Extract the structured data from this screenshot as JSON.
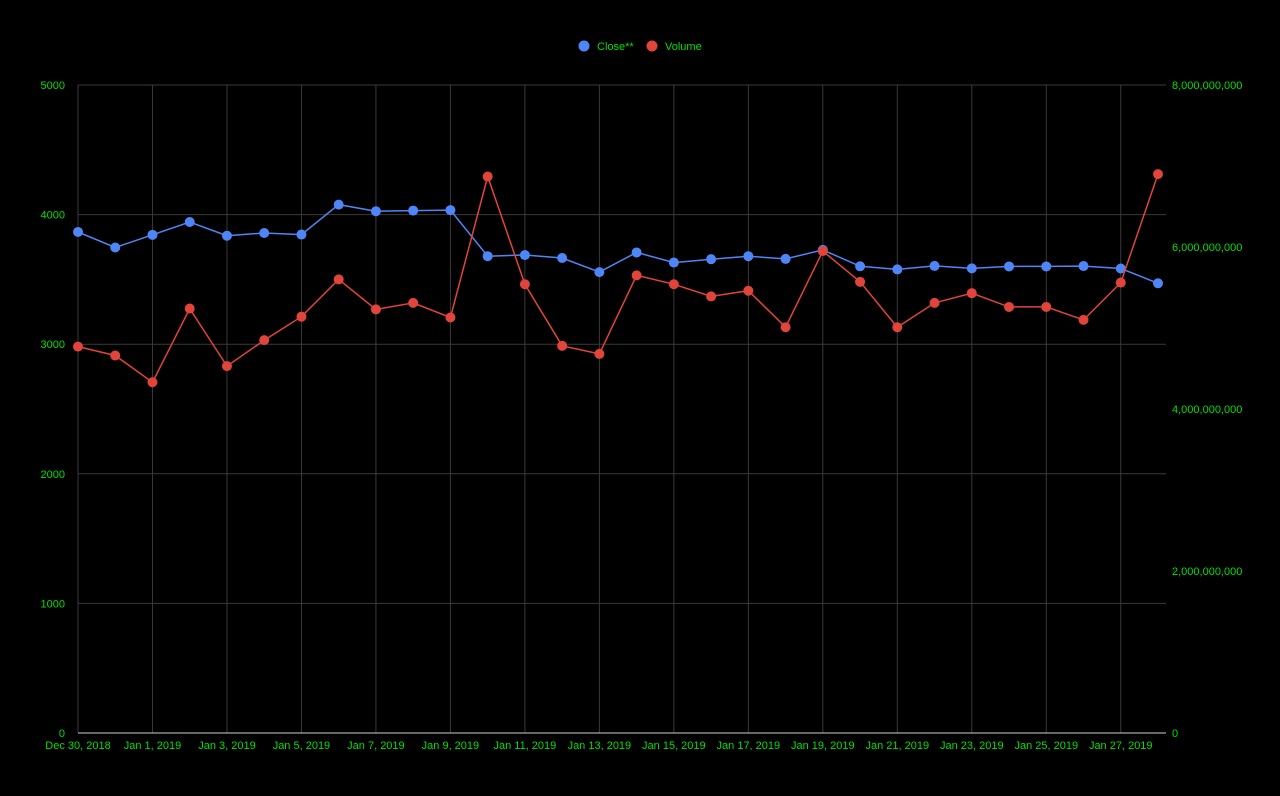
{
  "colors": {
    "background": "#000000",
    "grid": "#3a3a3a",
    "axis_text": "#00e000",
    "close": "#4f86f7",
    "volume": "#e0443a"
  },
  "chart_data": {
    "type": "line",
    "title": "",
    "legend": {
      "position": "top-center"
    },
    "x_start": "Dec 30, 2018",
    "x": [
      "Dec 30, 2018",
      "Dec 31, 2018",
      "Jan 1, 2019",
      "Jan 2, 2019",
      "Jan 3, 2019",
      "Jan 4, 2019",
      "Jan 5, 2019",
      "Jan 6, 2019",
      "Jan 7, 2019",
      "Jan 8, 2019",
      "Jan 9, 2019",
      "Jan 10, 2019",
      "Jan 11, 2019",
      "Jan 12, 2019",
      "Jan 13, 2019",
      "Jan 14, 2019",
      "Jan 15, 2019",
      "Jan 16, 2019",
      "Jan 17, 2019",
      "Jan 18, 2019",
      "Jan 19, 2019",
      "Jan 20, 2019",
      "Jan 21, 2019",
      "Jan 22, 2019",
      "Jan 23, 2019",
      "Jan 24, 2019",
      "Jan 25, 2019",
      "Jan 26, 2019",
      "Jan 27, 2019",
      "Jan 28, 2019"
    ],
    "x_tick_labels": [
      "Dec 30, 2018",
      "Jan 1, 2019",
      "Jan 3, 2019",
      "Jan 5, 2019",
      "Jan 7, 2019",
      "Jan 9, 2019",
      "Jan 11, 2019",
      "Jan 13, 2019",
      "Jan 15, 2019",
      "Jan 17, 2019",
      "Jan 19, 2019",
      "Jan 21, 2019",
      "Jan 23, 2019",
      "Jan 25, 2019",
      "Jan 27, 2019"
    ],
    "left_axis": {
      "min": 0,
      "max": 5000,
      "ticks": [
        "0",
        "1000",
        "2000",
        "3000",
        "4000",
        "5000"
      ]
    },
    "right_axis": {
      "min": 0,
      "max": 8000000000,
      "ticks": [
        "0",
        "2,000,000,000",
        "4,000,000,000",
        "6,000,000,000",
        "8,000,000,000"
      ]
    },
    "grid": true,
    "series": [
      {
        "name": "Close**",
        "axis": "left",
        "values": [
          3866,
          3746,
          3844,
          3943,
          3837,
          3858,
          3846,
          4077,
          4026,
          4031,
          4035,
          3679,
          3688,
          3665,
          3556,
          3708,
          3630,
          3656,
          3679,
          3658,
          3728,
          3601,
          3577,
          3604,
          3585,
          3600,
          3600,
          3603,
          3584,
          3470
        ]
      },
      {
        "name": "Volume",
        "axis": "right",
        "values": [
          4770000000,
          4660000000,
          4330000000,
          5240000000,
          4530000000,
          4850000000,
          5140000000,
          5600000000,
          5230000000,
          5310000000,
          5130000000,
          6870000000,
          5540000000,
          4780000000,
          4680000000,
          5650000000,
          5540000000,
          5390000000,
          5460000000,
          5010000000,
          5950000000,
          5570000000,
          5010000000,
          5310000000,
          5430000000,
          5260000000,
          5260000000,
          5100000000,
          5560000000,
          6900000000
        ]
      }
    ]
  }
}
